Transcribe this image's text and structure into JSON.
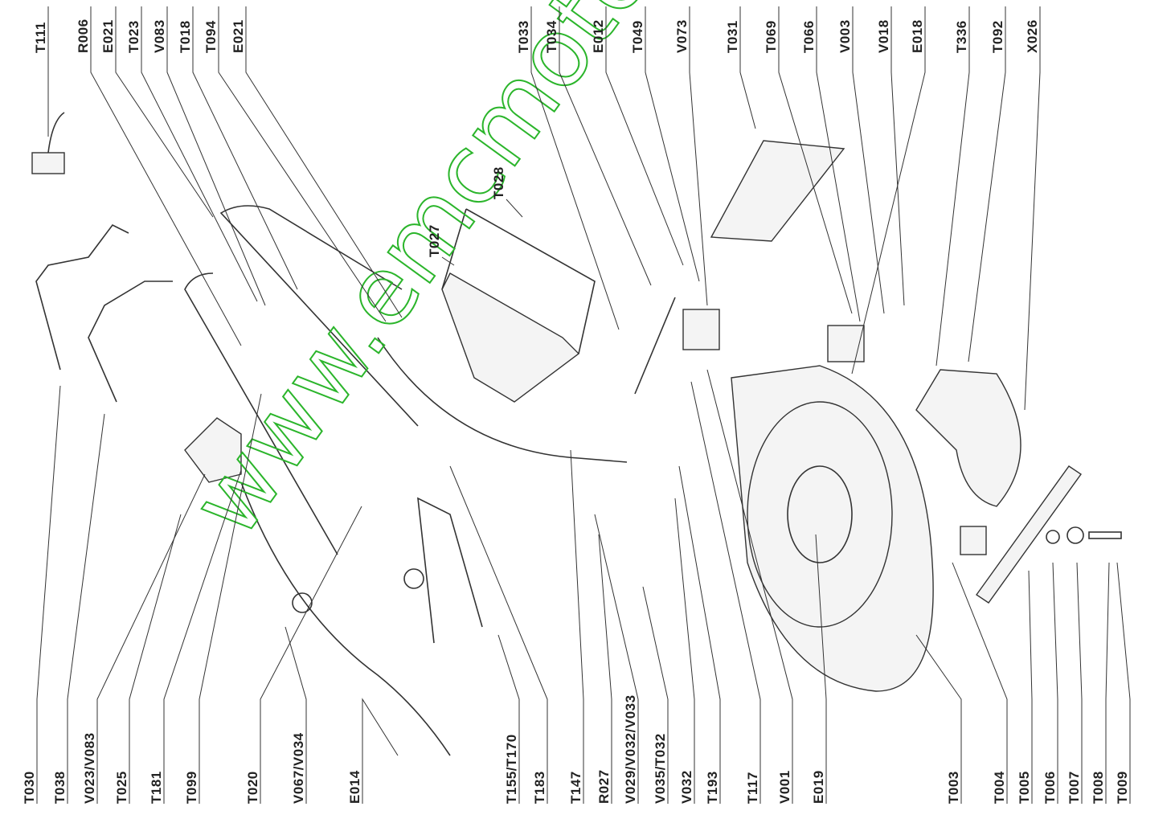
{
  "top_labels": [
    "T111",
    "R006",
    "E021",
    "T023",
    "V083",
    "T018",
    "T094",
    "E021",
    "T033",
    "T034",
    "E012",
    "T049",
    "V073",
    "T031",
    "T069",
    "T066",
    "V003",
    "V018",
    "E018",
    "T336",
    "T092",
    "X026"
  ],
  "mid_labels": [
    "T028",
    "T027"
  ],
  "bottom_labels": [
    "T030",
    "T038",
    "V023/V083",
    "T025",
    "T181",
    "T099",
    "T020",
    "V067/V034",
    "E014",
    "T155/T170",
    "T183",
    "T147",
    "R027",
    "V029/V032/V033",
    "V035/T032",
    "V032",
    "T193",
    "T117",
    "V001",
    "E019",
    "T003",
    "T004",
    "T005",
    "T006",
    "T007",
    "T008",
    "T009"
  ],
  "watermark": "www.emcmoto"
}
